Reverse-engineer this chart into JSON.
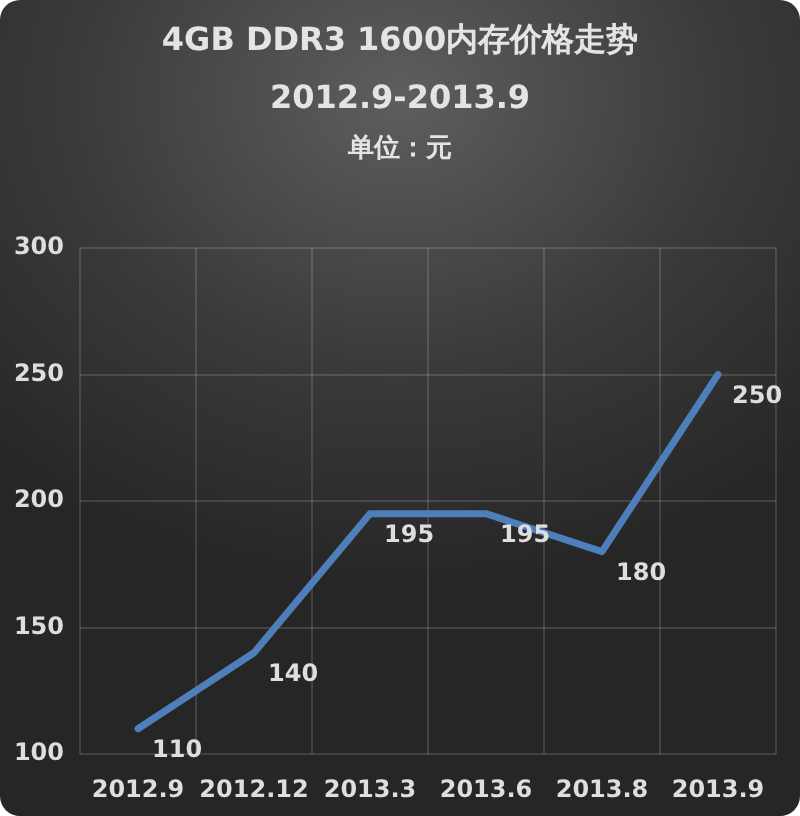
{
  "chart_data": {
    "type": "line",
    "title": "4GB DDR3 1600内存价格走势",
    "subtitle": "2012.9-2013.9",
    "annotations": [
      "单位：元"
    ],
    "categories": [
      "2012.9",
      "2012.12",
      "2013.3",
      "2013.6",
      "2013.8",
      "2013.9"
    ],
    "series": [
      {
        "color": "#4f7fba",
        "values": [
          110,
          140,
          195,
          195,
          180,
          250
        ]
      }
    ],
    "ylim": [
      100,
      300
    ],
    "yticks": [
      100,
      150,
      200,
      250,
      300
    ],
    "grid": true,
    "legend": false,
    "marker": "none",
    "line_style": "solid",
    "data_labels": true
  }
}
